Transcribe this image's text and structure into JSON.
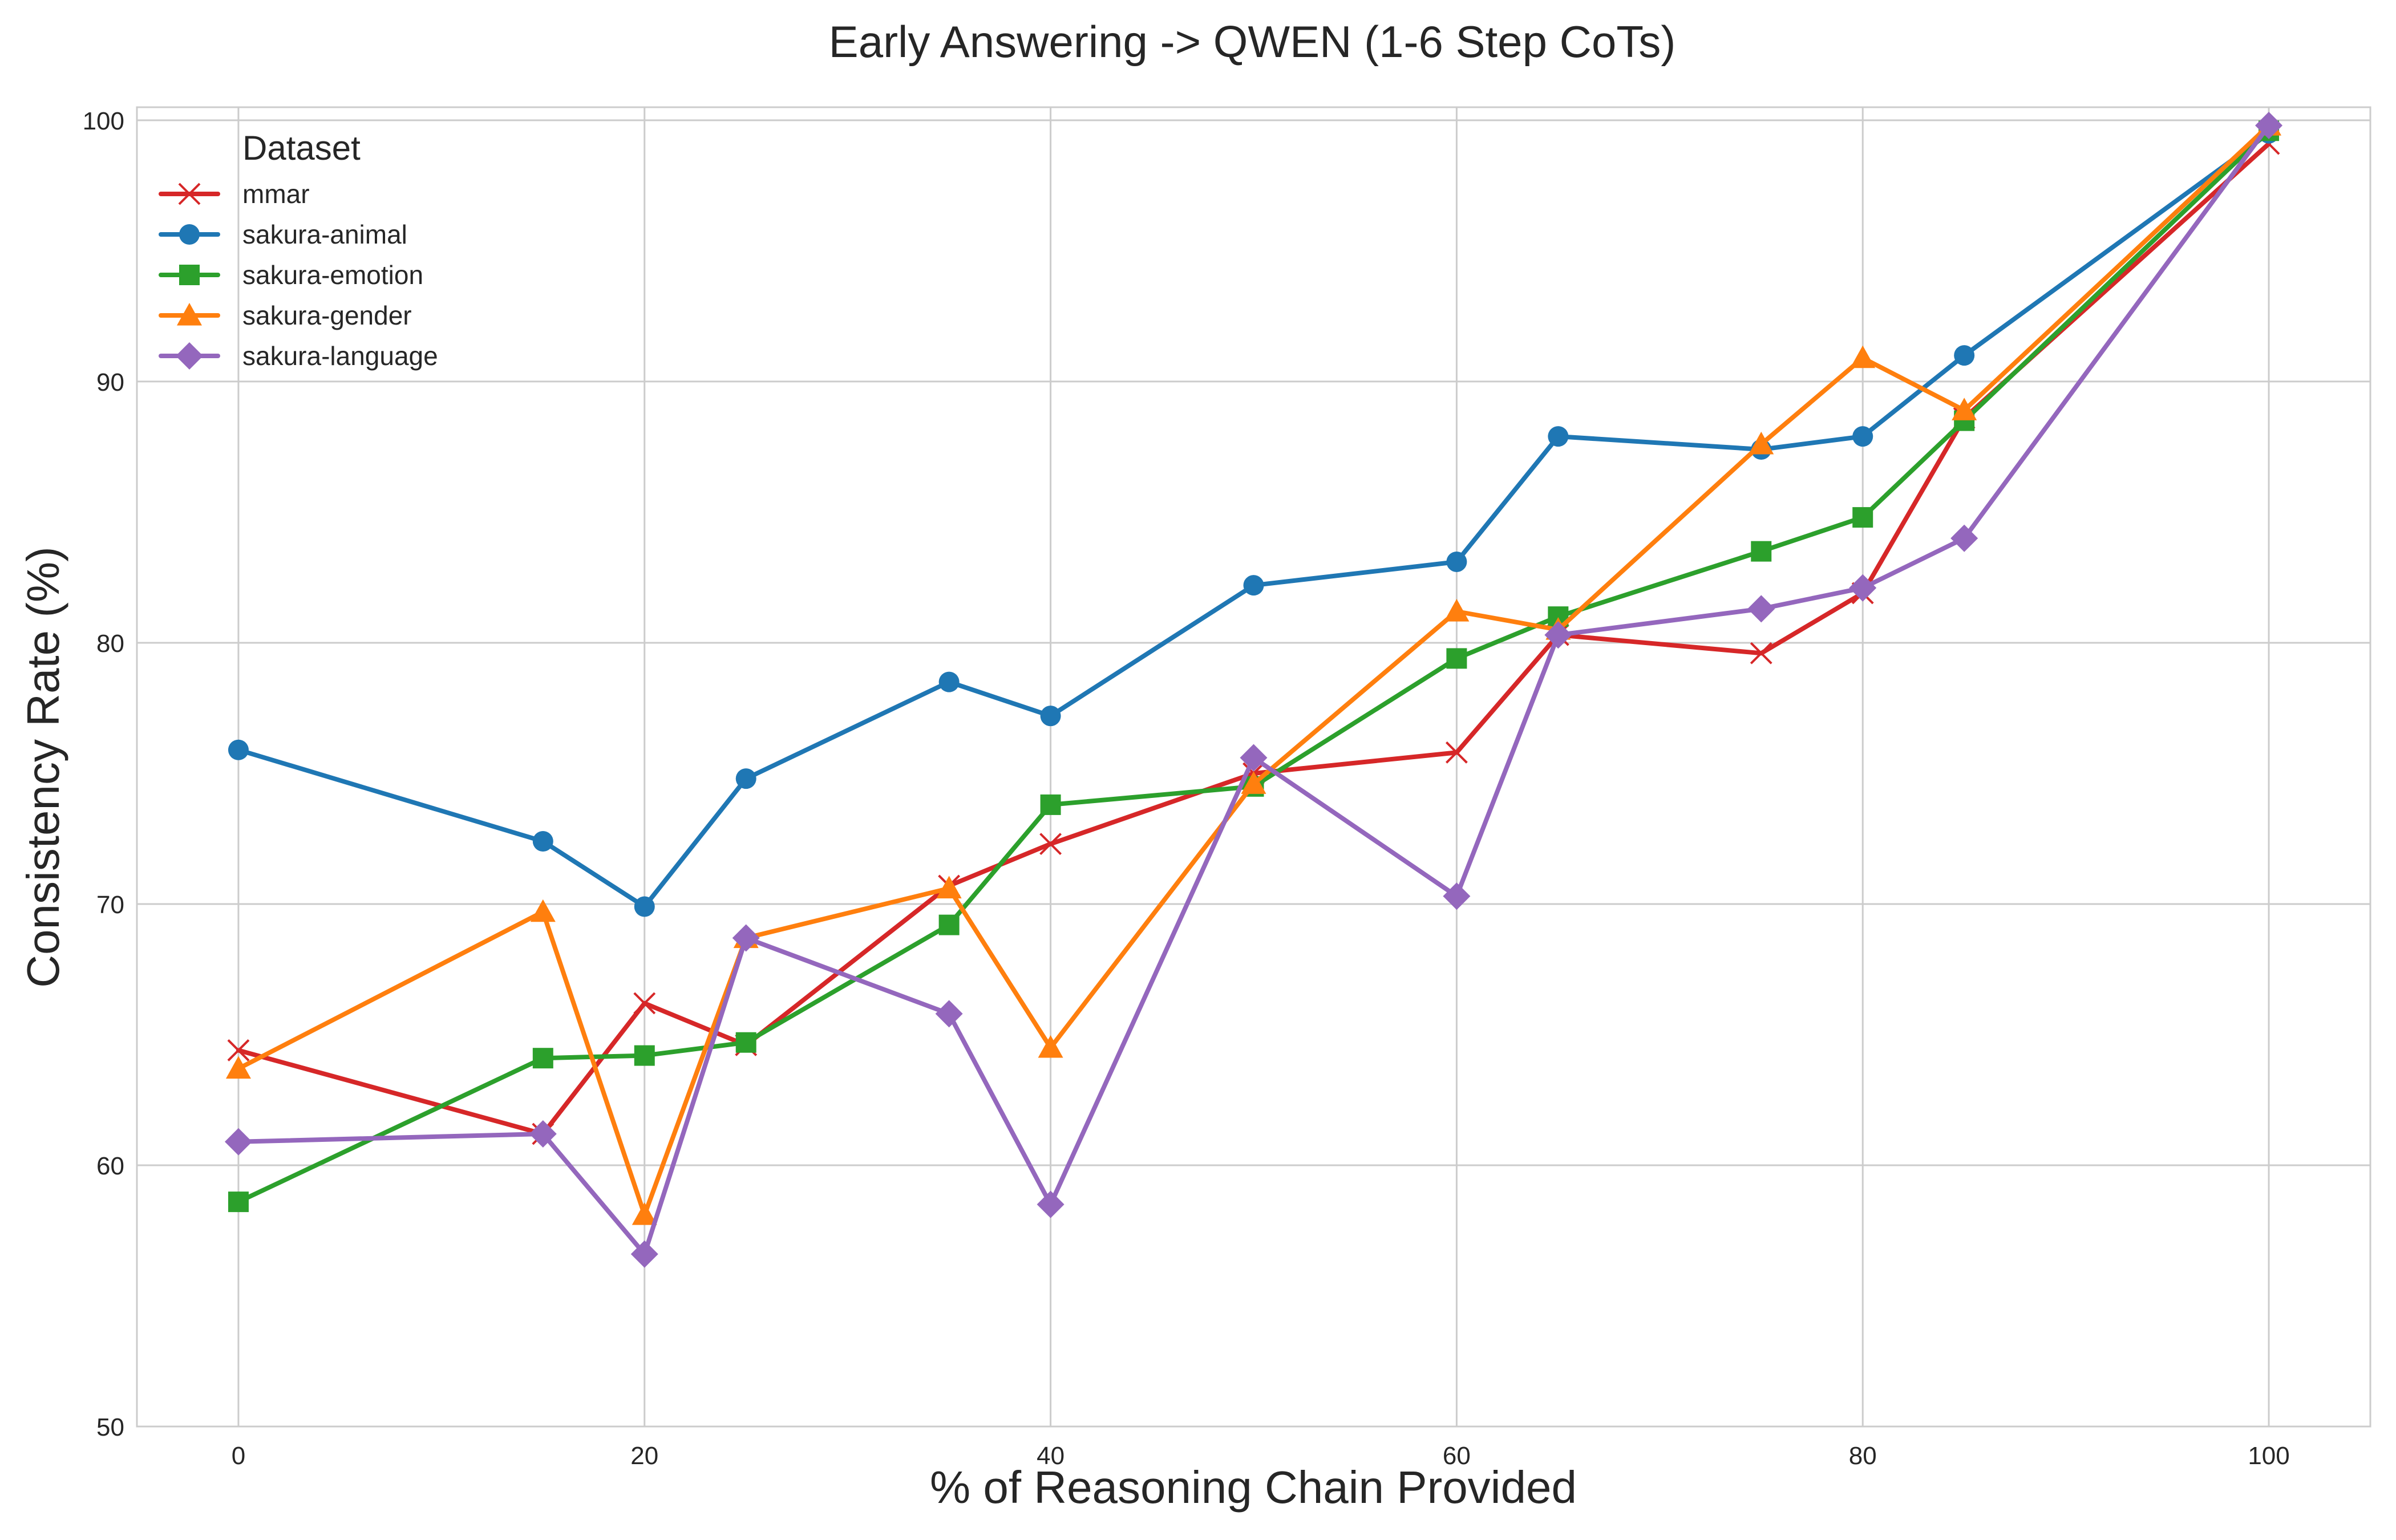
{
  "chart_data": {
    "type": "line",
    "title": "Early Answering -> QWEN (1-6 Step CoTs)",
    "xlabel": "% of Reasoning Chain Provided",
    "ylabel": "Consistency Rate (%)",
    "xlim": [
      -5,
      105
    ],
    "ylim": [
      50,
      100.5
    ],
    "xticks": [
      0,
      20,
      40,
      60,
      80,
      100
    ],
    "yticks": [
      50,
      60,
      70,
      80,
      90,
      100
    ],
    "grid": true,
    "legend": {
      "title": "Dataset",
      "placement": "top-left"
    },
    "series": [
      {
        "name": "mmar",
        "color": "#d62728",
        "marker": "x",
        "points": [
          [
            0,
            64.4
          ],
          [
            15,
            61.2
          ],
          [
            20,
            66.2
          ],
          [
            25,
            64.6
          ],
          [
            35,
            70.7
          ],
          [
            40,
            72.3
          ],
          [
            50,
            75.0
          ],
          [
            60,
            75.8
          ],
          [
            65,
            80.3
          ],
          [
            75,
            79.6
          ],
          [
            80,
            81.9
          ],
          [
            85,
            88.6
          ],
          [
            100,
            99.1
          ]
        ]
      },
      {
        "name": "sakura-animal",
        "color": "#1f77b4",
        "marker": "circle",
        "points": [
          [
            0,
            75.9
          ],
          [
            15,
            72.4
          ],
          [
            20,
            69.9
          ],
          [
            25,
            74.8
          ],
          [
            35,
            78.5
          ],
          [
            40,
            77.2
          ],
          [
            50,
            82.2
          ],
          [
            60,
            83.1
          ],
          [
            65,
            87.9
          ],
          [
            75,
            87.4
          ],
          [
            80,
            87.9
          ],
          [
            85,
            91.0
          ],
          [
            100,
            99.5
          ]
        ]
      },
      {
        "name": "sakura-emotion",
        "color": "#2ca02c",
        "marker": "square",
        "points": [
          [
            0,
            58.6
          ],
          [
            15,
            64.1
          ],
          [
            20,
            64.2
          ],
          [
            25,
            64.7
          ],
          [
            35,
            69.2
          ],
          [
            40,
            73.8
          ],
          [
            50,
            74.5
          ],
          [
            60,
            79.4
          ],
          [
            65,
            81.0
          ],
          [
            75,
            83.5
          ],
          [
            80,
            84.8
          ],
          [
            85,
            88.5
          ],
          [
            100,
            99.6
          ]
        ]
      },
      {
        "name": "sakura-gender",
        "color": "#ff7f0e",
        "marker": "triangle",
        "points": [
          [
            0,
            63.7
          ],
          [
            15,
            69.7
          ],
          [
            20,
            58.1
          ],
          [
            25,
            68.7
          ],
          [
            35,
            70.6
          ],
          [
            40,
            64.5
          ],
          [
            50,
            74.6
          ],
          [
            60,
            81.2
          ],
          [
            65,
            80.5
          ],
          [
            75,
            87.6
          ],
          [
            80,
            90.9
          ],
          [
            85,
            88.9
          ],
          [
            100,
            99.8
          ]
        ]
      },
      {
        "name": "sakura-language",
        "color": "#9467bd",
        "marker": "diamond",
        "points": [
          [
            0,
            60.9
          ],
          [
            15,
            61.2
          ],
          [
            20,
            56.6
          ],
          [
            25,
            68.7
          ],
          [
            35,
            65.8
          ],
          [
            40,
            58.5
          ],
          [
            50,
            75.6
          ],
          [
            60,
            70.3
          ],
          [
            65,
            80.3
          ],
          [
            75,
            81.3
          ],
          [
            80,
            82.1
          ],
          [
            85,
            84.0
          ],
          [
            100,
            99.8
          ]
        ]
      }
    ]
  }
}
